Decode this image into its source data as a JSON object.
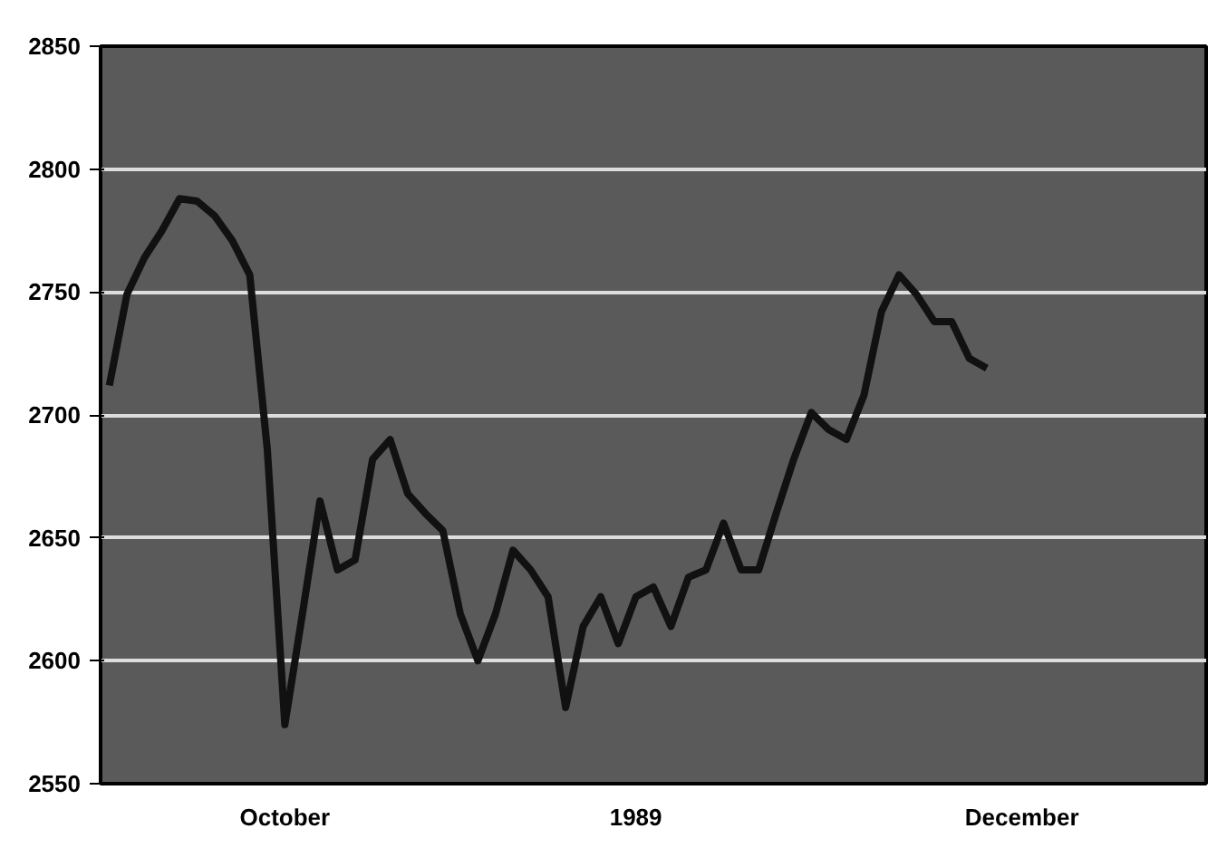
{
  "chart_data": {
    "type": "line",
    "categories": [
      null,
      null,
      null,
      null,
      null,
      null,
      null,
      null,
      null,
      null,
      "October",
      null,
      null,
      null,
      null,
      null,
      null,
      null,
      null,
      null,
      null,
      null,
      null,
      null,
      null,
      null,
      null,
      null,
      null,
      null,
      "1989",
      null,
      null,
      null,
      null,
      null,
      null,
      null,
      null,
      null,
      null,
      null,
      null,
      null,
      null,
      null,
      null,
      null,
      null,
      null,
      null,
      null,
      "December",
      null,
      null,
      null,
      null,
      null,
      null,
      null,
      null,
      null,
      null
    ],
    "series": [
      {
        "color": "#111111",
        "values": [
          2712,
          2749,
          2764,
          2775,
          2788,
          2787,
          2781,
          2771,
          2757,
          2686,
          2574,
          2619,
          2665,
          2637,
          2641,
          2682,
          2690,
          2668,
          2660,
          2653,
          2619,
          2600,
          2619,
          2645,
          2637,
          2626,
          2581,
          2614,
          2626,
          2607,
          2626,
          2630,
          2614,
          2634,
          2637,
          2656,
          2637,
          2637,
          2660,
          2682,
          2701,
          2694,
          2690,
          2708,
          2742,
          2757,
          2749,
          2738,
          2738,
          2723,
          2719,
          null,
          null,
          null,
          null,
          null,
          null,
          null,
          null,
          null,
          null,
          null,
          null
        ]
      }
    ],
    "ylim": [
      2550,
      2850
    ],
    "yticks": [
      2550,
      2600,
      2650,
      2700,
      2750,
      2800,
      2850
    ],
    "grid": "y",
    "line_style": "solid"
  }
}
